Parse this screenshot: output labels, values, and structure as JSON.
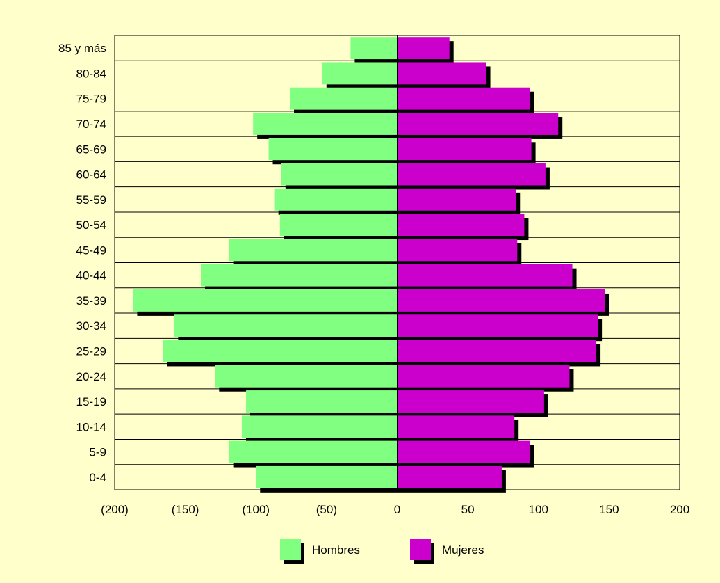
{
  "chart_data": {
    "type": "bar",
    "orientation": "horizontal",
    "layout": "population-pyramid",
    "categories": [
      "85 y más",
      "80-84",
      "75-79",
      "70-74",
      "65-69",
      "60-64",
      "55-59",
      "50-54",
      "45-49",
      "40-44",
      "35-39",
      "30-34",
      "25-29",
      "20-24",
      "15-19",
      "10-14",
      "5-9",
      "0-4"
    ],
    "series": [
      {
        "name": "Hombres",
        "color": "#80ff80",
        "values": [
          -33,
          -53,
          -76,
          -102,
          -91,
          -82,
          -87,
          -83,
          -119,
          -139,
          -187,
          -158,
          -166,
          -129,
          -107,
          -110,
          -119,
          -100
        ]
      },
      {
        "name": "Mujeres",
        "color": "#cc00cc",
        "values": [
          37,
          63,
          94,
          114,
          95,
          105,
          84,
          90,
          85,
          124,
          147,
          142,
          141,
          122,
          104,
          83,
          94,
          74
        ]
      }
    ],
    "xlim": [
      -200,
      200
    ],
    "xticks": [
      -200,
      -150,
      -100,
      -50,
      0,
      50,
      100,
      150,
      200
    ],
    "xtick_labels": [
      "(200)",
      "(150)",
      "(100)",
      "(50)",
      "0",
      "50",
      "100",
      "150",
      "200"
    ],
    "grid": "horizontal",
    "plot_background": "#ffffcc",
    "legend_position": "bottom",
    "title": "",
    "xlabel": "",
    "ylabel": ""
  }
}
